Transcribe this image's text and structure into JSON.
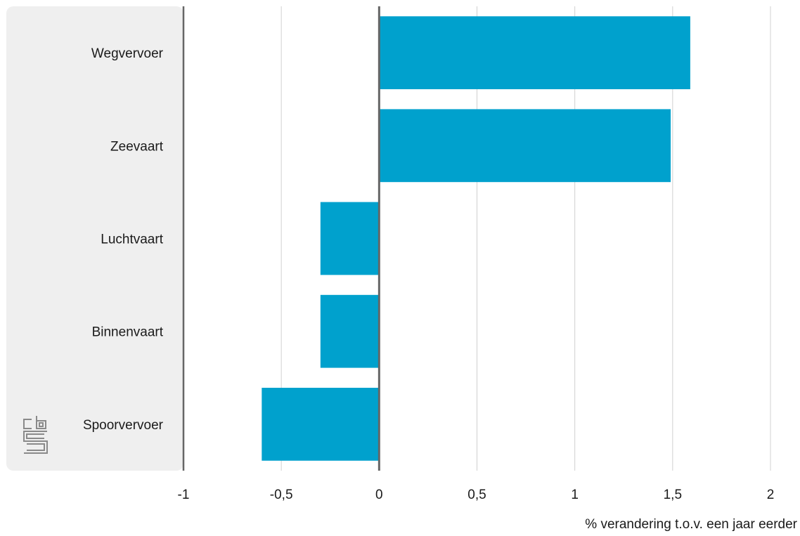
{
  "chart_data": {
    "type": "bar",
    "orientation": "horizontal",
    "categories": [
      "Wegvervoer",
      "Zeevaart",
      "Luchtvaart",
      "Binnenvaart",
      "Spoorvervoer"
    ],
    "values": [
      1.59,
      1.49,
      -0.3,
      -0.3,
      -0.6
    ],
    "xlabel": "% verandering t.o.v. een jaar eerder",
    "xlim": [
      -1,
      2
    ],
    "xticks": [
      -1,
      -0.5,
      0,
      0.5,
      1,
      1.5,
      2
    ],
    "xtick_labels": [
      "-1",
      "-0,5",
      "0",
      "0,5",
      "1",
      "1,5",
      "2"
    ],
    "grid": "vertical",
    "colors": {
      "bar": "#00a1cd",
      "grid": "#d0d0d0",
      "axis": "#666666",
      "label_panel": "#efefef",
      "logo": "#8a8a8a"
    }
  },
  "logo": {
    "name": "cbs-logo-icon",
    "text": "cbs"
  }
}
